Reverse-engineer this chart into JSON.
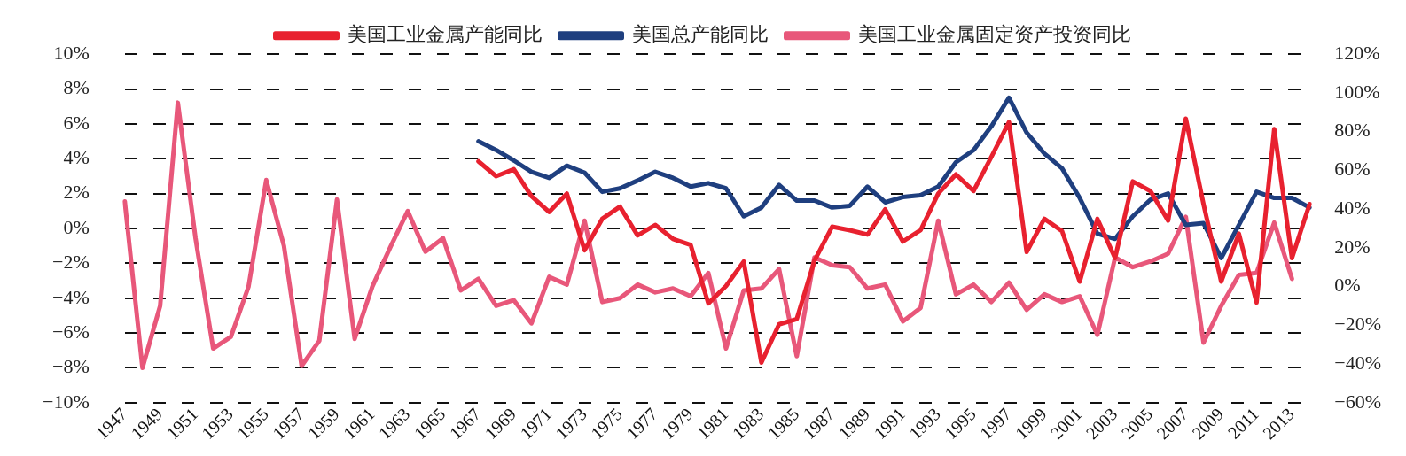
{
  "chart_data": {
    "type": "line",
    "categories": [
      "1947",
      null,
      "1949",
      null,
      "1951",
      null,
      "1953",
      null,
      "1955",
      null,
      "1957",
      null,
      "1959",
      null,
      "1961",
      null,
      "1963",
      null,
      "1965",
      null,
      "1967",
      null,
      "1969",
      null,
      "1971",
      null,
      "1973",
      null,
      "1975",
      null,
      "1977",
      null,
      "1979",
      null,
      "1981",
      null,
      "1983",
      null,
      "1985",
      null,
      "1987",
      null,
      "1989",
      null,
      "1991",
      null,
      "1993",
      null,
      "1995",
      null,
      "1997",
      null,
      "1999",
      null,
      "2001",
      null,
      "2003",
      null,
      "2005",
      null,
      "2007",
      null,
      "2009",
      null,
      "2011",
      null,
      "2013",
      null
    ],
    "series": [
      {
        "name": "美国工业金属产能同比",
        "color": "#e8212f",
        "values": [
          null,
          null,
          null,
          null,
          null,
          null,
          null,
          null,
          null,
          null,
          null,
          null,
          null,
          null,
          null,
          null,
          null,
          null,
          null,
          null,
          3.85,
          3.0,
          3.4,
          1.85,
          0.95,
          2.0,
          -1.25,
          0.55,
          1.25,
          -0.4,
          0.2,
          -0.6,
          -0.95,
          -4.3,
          -3.3,
          -1.9,
          -7.7,
          -5.5,
          -5.2,
          -1.85,
          0.1,
          -0.1,
          -0.35,
          1.1,
          -0.75,
          -0.1,
          2.0,
          3.1,
          2.15,
          4.1,
          6.1,
          -1.35,
          0.55,
          -0.15,
          -3.05,
          0.55,
          -1.7,
          2.7,
          2.15,
          0.45,
          6.3,
          1.4,
          -3.05,
          -0.3,
          -4.25,
          5.7,
          -1.7,
          1.4
        ]
      },
      {
        "name": "美国总产能同比",
        "color": "#1f3f7f",
        "values": [
          null,
          null,
          null,
          null,
          null,
          null,
          null,
          null,
          null,
          null,
          null,
          null,
          null,
          null,
          null,
          null,
          null,
          null,
          null,
          null,
          5.0,
          4.5,
          3.9,
          3.25,
          2.9,
          3.6,
          3.2,
          2.1,
          2.3,
          2.75,
          3.25,
          2.9,
          2.4,
          2.6,
          2.3,
          0.7,
          1.2,
          2.5,
          1.6,
          1.6,
          1.2,
          1.3,
          2.4,
          1.5,
          1.8,
          1.9,
          2.4,
          3.8,
          4.5,
          5.85,
          7.5,
          5.5,
          4.3,
          3.45,
          1.75,
          -0.3,
          -0.6,
          0.7,
          1.65,
          2.0,
          0.2,
          0.3,
          -1.7,
          0.2,
          2.1,
          1.75,
          1.75,
          1.2
        ]
      },
      {
        "name": "美国工业金属固定资产投资同比",
        "color": "#e8577a",
        "axis": "y2",
        "values": [
          44,
          -42,
          -10,
          95,
          25,
          -32,
          -26,
          0,
          55,
          21,
          -41,
          -28,
          45,
          -27,
          0,
          20,
          39,
          18,
          25,
          -2,
          4,
          -10,
          -7,
          -19,
          5,
          1,
          34,
          -8,
          -6,
          1,
          -3,
          -1,
          -5,
          7,
          -32,
          -2,
          -1,
          9,
          -36,
          15,
          11,
          10,
          -1,
          1,
          -18,
          -11,
          34,
          -4,
          1,
          -8,
          2,
          -12,
          -4,
          -8,
          -5,
          -25,
          15,
          10,
          13,
          17,
          36,
          -29,
          -10,
          6,
          7,
          33,
          4,
          null
        ]
      }
    ],
    "ylim": [
      -10,
      10
    ],
    "yticks": [
      {
        "value": -10,
        "label": "−10%"
      },
      {
        "value": -8,
        "label": "−8%"
      },
      {
        "value": -6,
        "label": "−6%"
      },
      {
        "value": -4,
        "label": "−4%"
      },
      {
        "value": -2,
        "label": "−2%"
      },
      {
        "value": 0,
        "label": "0%"
      },
      {
        "value": 2,
        "label": "2%"
      },
      {
        "value": 4,
        "label": "4%"
      },
      {
        "value": 6,
        "label": "6%"
      },
      {
        "value": 8,
        "label": "8%"
      },
      {
        "value": 10,
        "label": "10%"
      }
    ],
    "y2lim": [
      -60,
      120
    ],
    "y2ticks": [
      {
        "value": -60,
        "label": "−60%"
      },
      {
        "value": -40,
        "label": "−40%"
      },
      {
        "value": -20,
        "label": "−20%"
      },
      {
        "value": 0,
        "label": "0%"
      },
      {
        "value": 20,
        "label": "20%"
      },
      {
        "value": 40,
        "label": "40%"
      },
      {
        "value": 60,
        "label": "60%"
      },
      {
        "value": 80,
        "label": "80%"
      },
      {
        "value": 100,
        "label": "100%"
      },
      {
        "value": 120,
        "label": "120%"
      }
    ],
    "grid": "y",
    "legend": "top",
    "marker": "none",
    "line_style": "solid"
  }
}
